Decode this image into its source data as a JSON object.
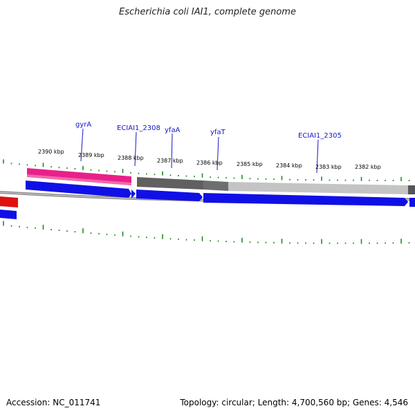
{
  "title": "Escherichia coli IAI1, complete genome",
  "accession": "Accession: NC_011741",
  "summary": "Topology: circular; Length: 4,700,560 bp; Genes: 4,546",
  "colors": {
    "tick": "#1f8a1f",
    "backbone": "#8a8a8a",
    "cds_forward": "#1010e6",
    "highlight_pink": "#e8208a",
    "highlight_red": "#e01010",
    "gene_gray_dark": "#606060",
    "gene_gray_light": "#c4c4c4",
    "label": "#1515c8"
  },
  "scale_labels": [
    {
      "text": "2390 kbp"
    },
    {
      "text": "2389 kbp"
    },
    {
      "text": "2388 kbp"
    },
    {
      "text": "2387 kbp"
    },
    {
      "text": "2386 kbp"
    },
    {
      "text": "2385 kbp"
    },
    {
      "text": "2384 kbp"
    },
    {
      "text": "2383 kbp"
    },
    {
      "text": "2382 kbp"
    }
  ],
  "gene_labels": [
    {
      "text": "gyrA"
    },
    {
      "text": "ECIAI1_2308"
    },
    {
      "text": "yfaA"
    },
    {
      "text": "yfaT"
    },
    {
      "text": "ECIAI1_2305"
    }
  ]
}
